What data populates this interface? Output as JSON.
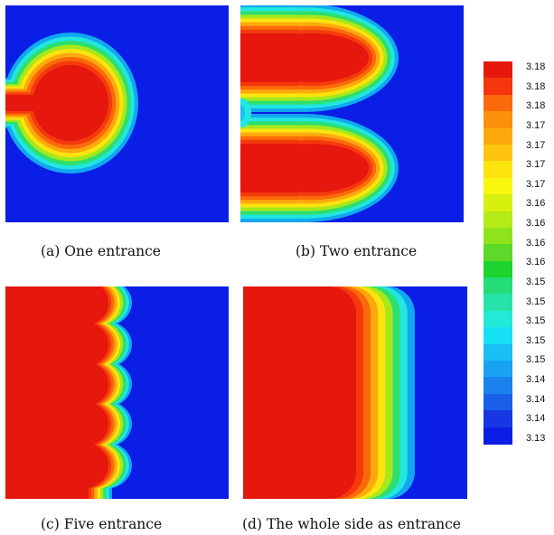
{
  "captions": {
    "a": "(a) One entrance",
    "b": "(b) Two entrance",
    "c": "(c) Five entrance",
    "d": "(d) The whole side as entrance"
  },
  "legend": {
    "colors": [
      "#e6170d",
      "#f5360c",
      "#fb6a0a",
      "#fc8f0b",
      "#fca90e",
      "#fdc510",
      "#fde40f",
      "#f7f70f",
      "#d6f10f",
      "#b3ea18",
      "#8fe31b",
      "#5ed82a",
      "#1dd42f",
      "#24dd76",
      "#27e3a9",
      "#22ead6",
      "#15e0f5",
      "#18c0f4",
      "#1aa2f2",
      "#1a81ee",
      "#1a5fe8",
      "#1637e2",
      "#0b1ee6"
    ],
    "labels": [
      "3.18",
      "3.18",
      "3.18",
      "3.17",
      "3.17",
      "3.17",
      "3.17",
      "3.16",
      "3.16",
      "3.16",
      "3.16",
      "3.15",
      "3.15",
      "3.15",
      "3.15",
      "3.15",
      "3.14",
      "3.14",
      "3.14",
      "3.13"
    ]
  },
  "colormap": {
    "background": "#0b1ee6",
    "levels": [
      "#12a8f0",
      "#22e6e0",
      "#2ddf6f",
      "#a6e81b",
      "#fde40f",
      "#fca90e",
      "#fb6a0a",
      "#f43a0c",
      "#e6170d"
    ]
  }
}
